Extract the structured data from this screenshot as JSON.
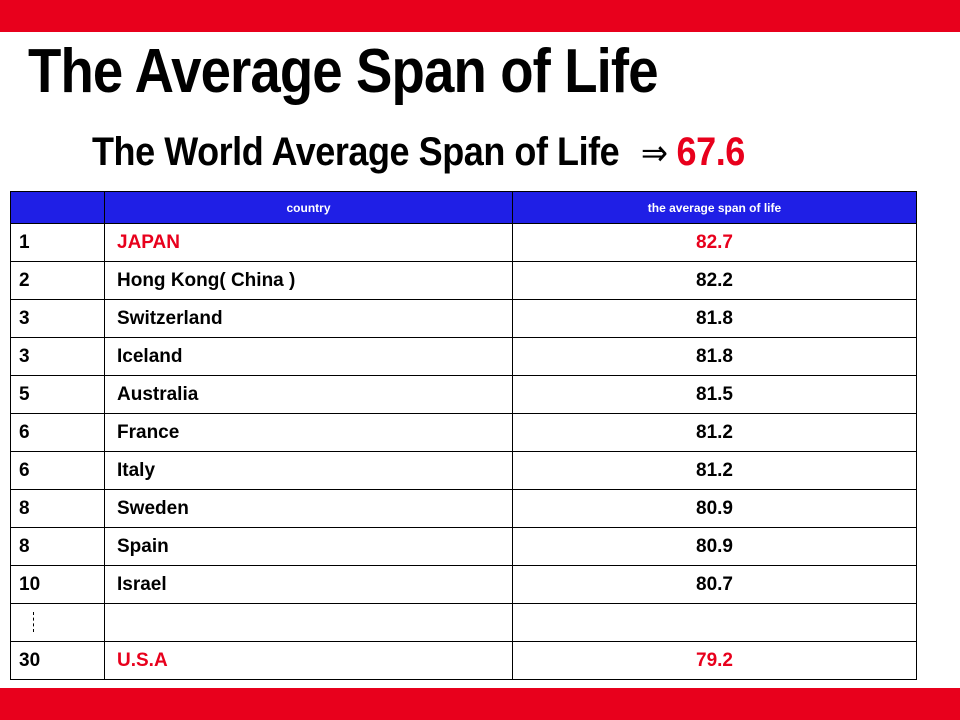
{
  "title": "The Average Span of Life",
  "subtitle": {
    "text": "The World Average Span of Life",
    "arrow": "⇒",
    "value": "67.6"
  },
  "colors": {
    "accent_red": "#e8001c",
    "header_blue": "#1f1fe6"
  },
  "table": {
    "headers": [
      "",
      "country",
      "the average span of life"
    ],
    "rows": [
      {
        "rank": "1",
        "country": "JAPAN",
        "life": "82.7",
        "highlight": true
      },
      {
        "rank": "2",
        "country": "Hong Kong( China )",
        "life": "82.2",
        "highlight": false
      },
      {
        "rank": "3",
        "country": "Switzerland",
        "life": "81.8",
        "highlight": false
      },
      {
        "rank": "3",
        "country": "Iceland",
        "life": "81.8",
        "highlight": false
      },
      {
        "rank": "5",
        "country": "Australia",
        "life": "81.5",
        "highlight": false
      },
      {
        "rank": "6",
        "country": "France",
        "life": "81.2",
        "highlight": false
      },
      {
        "rank": "6",
        "country": "Italy",
        "life": "81.2",
        "highlight": false
      },
      {
        "rank": "8",
        "country": "Sweden",
        "life": "80.9",
        "highlight": false
      },
      {
        "rank": "8",
        "country": "Spain",
        "life": "80.9",
        "highlight": false
      },
      {
        "rank": "10",
        "country": "Israel",
        "life": "80.7",
        "highlight": false
      },
      {
        "rank": "",
        "country": "",
        "life": "",
        "highlight": false,
        "ellipsis": true
      },
      {
        "rank": "30",
        "country": "U.S.A",
        "life": "79.2",
        "highlight": true
      }
    ]
  }
}
